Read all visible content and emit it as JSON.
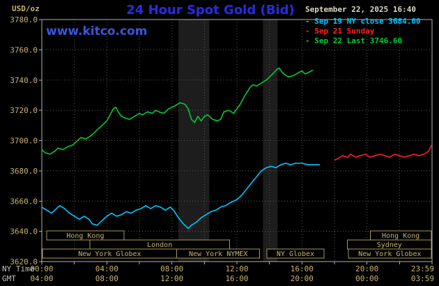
{
  "header": {
    "unit": "USD/oz",
    "title": "24 Hour Spot Gold (Bid)",
    "datetime": "September 22, 2025 16:40",
    "watermark": "www.kitco.com"
  },
  "legend": [
    {
      "label": "- Sep 19 NY close 3684.00",
      "color": "#00c8ff"
    },
    {
      "label": "- Sep 21 Sunday",
      "color": "#ff2020"
    },
    {
      "label": "- Sep 22 Last 3746.60",
      "color": "#00cc33"
    }
  ],
  "colors": {
    "background": "#000000",
    "title": "#2a2ae6",
    "watermark": "#3c55dd",
    "axis": "#c8b472",
    "axis_row": "#c0c0c0",
    "grid": "#5a5a5a",
    "border": "#b0b0b0",
    "band": "#1d1d1d",
    "session": "#a89858",
    "session_text": "#c4b478"
  },
  "chart_data": {
    "type": "line",
    "title": "24 Hour Spot Gold (Bid)",
    "ylabel": "USD/oz",
    "ylim": [
      3620,
      3780
    ],
    "y_ticks": [
      3780,
      3760,
      3740,
      3720,
      3700,
      3680,
      3660,
      3640,
      3620
    ],
    "x_axis_rows": [
      "NY Time",
      "GMT"
    ],
    "x_ticks": [
      {
        "h": 0,
        "ny": "00:00",
        "gmt": "04:00"
      },
      {
        "h": 4,
        "ny": "04:00",
        "gmt": "08:00"
      },
      {
        "h": 8,
        "ny": "08:00",
        "gmt": "12:00"
      },
      {
        "h": 12,
        "ny": "12:00",
        "gmt": "16:00"
      },
      {
        "h": 16,
        "ny": "16:00",
        "gmt": "20:00"
      },
      {
        "h": 20,
        "ny": "20:00",
        "gmt": "00:00"
      },
      {
        "h": 23.98,
        "ny": "23:59",
        "gmt": "03:59"
      }
    ],
    "bands": [
      {
        "start": 8.4,
        "end": 10.3
      },
      {
        "start": 13.6,
        "end": 14.5
      }
    ],
    "sessions": [
      {
        "row": 0,
        "start": 0.3,
        "end": 5.05,
        "label": "Hong Kong"
      },
      {
        "row": 0,
        "start": 20.2,
        "end": 23.95,
        "label": "Hong Kong"
      },
      {
        "row": 1,
        "start": 2.95,
        "end": 11.55,
        "label": "London"
      },
      {
        "row": 1,
        "start": 18.8,
        "end": 23.95,
        "label": "Sydney"
      },
      {
        "row": 2,
        "start": 0.05,
        "end": 8.3,
        "label": "New York Globex"
      },
      {
        "row": 2,
        "start": 8.3,
        "end": 13.4,
        "label": "New York NYMEX"
      },
      {
        "row": 2,
        "start": 13.85,
        "end": 17.35,
        "label": "NY Globex"
      },
      {
        "row": 2,
        "start": 18.85,
        "end": 23.95,
        "label": "New York Globex"
      }
    ],
    "series": [
      {
        "id": "sep19-ny-close",
        "name": "Sep 19 NY close 3684.00",
        "color": "#00c8ff",
        "points": [
          [
            0,
            3656
          ],
          [
            0.3,
            3654
          ],
          [
            0.6,
            3652
          ],
          [
            0.9,
            3655
          ],
          [
            1.1,
            3657
          ],
          [
            1.4,
            3655
          ],
          [
            1.7,
            3652
          ],
          [
            2,
            3650
          ],
          [
            2.3,
            3648
          ],
          [
            2.6,
            3650
          ],
          [
            2.9,
            3648
          ],
          [
            3.1,
            3645
          ],
          [
            3.4,
            3644
          ],
          [
            3.7,
            3647
          ],
          [
            4,
            3650
          ],
          [
            4.3,
            3652
          ],
          [
            4.6,
            3650
          ],
          [
            4.9,
            3651
          ],
          [
            5.2,
            3653
          ],
          [
            5.5,
            3652
          ],
          [
            5.8,
            3654
          ],
          [
            6.1,
            3655
          ],
          [
            6.4,
            3657
          ],
          [
            6.7,
            3655
          ],
          [
            7,
            3657
          ],
          [
            7.3,
            3656
          ],
          [
            7.6,
            3654
          ],
          [
            7.9,
            3656
          ],
          [
            8.1,
            3654
          ],
          [
            8.4,
            3649
          ],
          [
            8.7,
            3645
          ],
          [
            9,
            3642
          ],
          [
            9.2,
            3644
          ],
          [
            9.5,
            3646
          ],
          [
            9.8,
            3649
          ],
          [
            10.1,
            3651
          ],
          [
            10.4,
            3653
          ],
          [
            10.7,
            3654
          ],
          [
            11,
            3656
          ],
          [
            11.3,
            3657
          ],
          [
            11.6,
            3659
          ],
          [
            12,
            3661
          ],
          [
            12.3,
            3664
          ],
          [
            12.6,
            3668
          ],
          [
            12.9,
            3672
          ],
          [
            13.2,
            3676
          ],
          [
            13.5,
            3680
          ],
          [
            13.8,
            3682
          ],
          [
            14.1,
            3683
          ],
          [
            14.4,
            3682
          ],
          [
            14.7,
            3684
          ],
          [
            15,
            3685
          ],
          [
            15.3,
            3684
          ],
          [
            15.6,
            3685
          ],
          [
            16,
            3685
          ],
          [
            16.4,
            3684
          ],
          [
            16.8,
            3684
          ],
          [
            17.1,
            3684
          ]
        ]
      },
      {
        "id": "sep21-sunday",
        "name": "Sep 21 Sunday",
        "color": "#ff2020",
        "points": [
          [
            18,
            3687
          ],
          [
            18.2,
            3688
          ],
          [
            18.5,
            3690
          ],
          [
            18.8,
            3689
          ],
          [
            19,
            3691
          ],
          [
            19.3,
            3689
          ],
          [
            19.6,
            3690
          ],
          [
            19.9,
            3691
          ],
          [
            20.2,
            3689
          ],
          [
            20.5,
            3690
          ],
          [
            20.8,
            3691
          ],
          [
            21.1,
            3690
          ],
          [
            21.4,
            3689
          ],
          [
            21.7,
            3691
          ],
          [
            22,
            3690
          ],
          [
            22.3,
            3689
          ],
          [
            22.6,
            3690
          ],
          [
            22.9,
            3691
          ],
          [
            23.2,
            3690
          ],
          [
            23.5,
            3691
          ],
          [
            23.8,
            3693
          ],
          [
            23.97,
            3697
          ]
        ]
      },
      {
        "id": "sep22-last",
        "name": "Sep 22 Last 3746.60",
        "color": "#00cc33",
        "points": [
          [
            0,
            3694
          ],
          [
            0.2,
            3692
          ],
          [
            0.5,
            3691
          ],
          [
            0.8,
            3693
          ],
          [
            1,
            3695
          ],
          [
            1.3,
            3694
          ],
          [
            1.6,
            3696
          ],
          [
            1.9,
            3697
          ],
          [
            2.1,
            3699
          ],
          [
            2.4,
            3702
          ],
          [
            2.7,
            3701
          ],
          [
            3,
            3703
          ],
          [
            3.2,
            3705
          ],
          [
            3.5,
            3708
          ],
          [
            3.8,
            3711
          ],
          [
            4,
            3713
          ],
          [
            4.2,
            3717
          ],
          [
            4.4,
            3721
          ],
          [
            4.55,
            3722
          ],
          [
            4.7,
            3719
          ],
          [
            4.9,
            3716
          ],
          [
            5.1,
            3715
          ],
          [
            5.4,
            3714
          ],
          [
            5.7,
            3716
          ],
          [
            6,
            3718
          ],
          [
            6.2,
            3717
          ],
          [
            6.5,
            3719
          ],
          [
            6.8,
            3718
          ],
          [
            7,
            3720
          ],
          [
            7.2,
            3719
          ],
          [
            7.5,
            3718
          ],
          [
            7.8,
            3721
          ],
          [
            8,
            3722
          ],
          [
            8.2,
            3723
          ],
          [
            8.5,
            3725
          ],
          [
            8.8,
            3724
          ],
          [
            9,
            3721
          ],
          [
            9.2,
            3714
          ],
          [
            9.4,
            3712
          ],
          [
            9.6,
            3716
          ],
          [
            9.8,
            3713
          ],
          [
            10,
            3716
          ],
          [
            10.2,
            3717
          ],
          [
            10.5,
            3714
          ],
          [
            10.8,
            3713
          ],
          [
            11,
            3714
          ],
          [
            11.2,
            3719
          ],
          [
            11.5,
            3720
          ],
          [
            11.8,
            3718
          ],
          [
            12,
            3721
          ],
          [
            12.2,
            3724
          ],
          [
            12.5,
            3730
          ],
          [
            12.8,
            3735
          ],
          [
            13,
            3737
          ],
          [
            13.2,
            3736
          ],
          [
            13.5,
            3738
          ],
          [
            13.8,
            3740
          ],
          [
            14,
            3742
          ],
          [
            14.2,
            3744
          ],
          [
            14.45,
            3747
          ],
          [
            14.6,
            3748
          ],
          [
            14.8,
            3745
          ],
          [
            15,
            3743
          ],
          [
            15.2,
            3742
          ],
          [
            15.5,
            3743
          ],
          [
            15.8,
            3745
          ],
          [
            16,
            3746
          ],
          [
            16.2,
            3744
          ],
          [
            16.4,
            3745
          ],
          [
            16.67,
            3746.6
          ]
        ]
      }
    ]
  }
}
